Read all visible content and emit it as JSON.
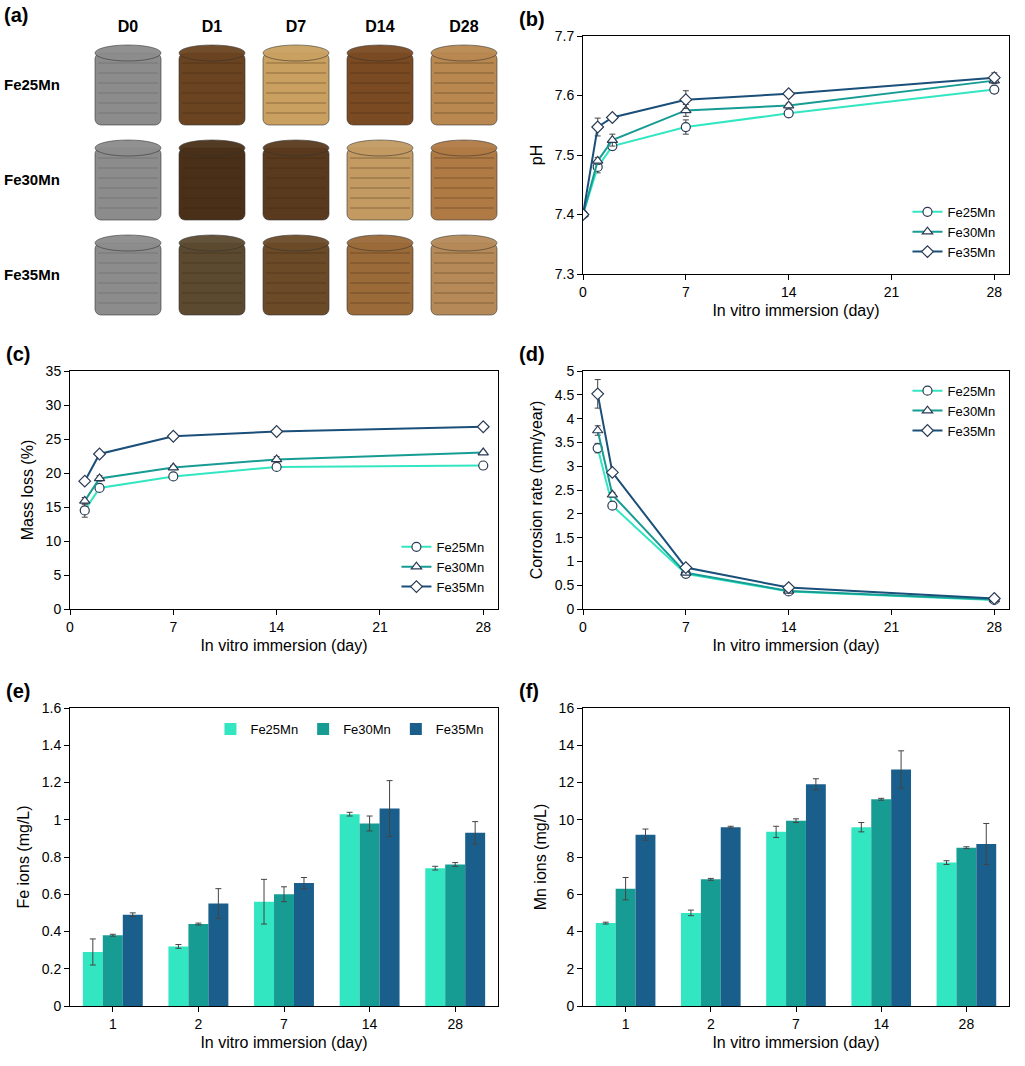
{
  "photo_grid": {
    "label": "(a)",
    "columns": [
      "D0",
      "D1",
      "D7",
      "D14",
      "D28"
    ],
    "rows": [
      "Fe25Mn",
      "Fe30Mn",
      "Fe35Mn"
    ]
  },
  "chart_data": [
    {
      "label": "(b)",
      "type": "line",
      "grid": false,
      "legend": "lower right",
      "x_label": "In vitro immersion (day)",
      "y_label": "pH",
      "x": [
        0,
        1,
        2,
        7,
        14,
        28
      ],
      "xlim": [
        0,
        29
      ],
      "xticks": [
        0,
        7,
        14,
        21,
        28
      ],
      "ylim": [
        7.3,
        7.7
      ],
      "yticks": [
        7.3,
        7.4,
        7.5,
        7.6,
        7.7
      ],
      "series": [
        {
          "name": "Fe25Mn",
          "color": "#33e6c2",
          "marker": "circle",
          "line_style": "solid",
          "values": [
            7.4,
            7.48,
            7.515,
            7.547,
            7.57,
            7.61
          ],
          "errors": [
            0.003,
            0.01,
            0.006,
            0.012,
            0.004,
            0.006
          ]
        },
        {
          "name": "Fe30Mn",
          "color": "#179c94",
          "marker": "triangle-up",
          "line_style": "solid",
          "values": [
            7.4,
            7.49,
            7.525,
            7.575,
            7.583,
            7.625
          ],
          "errors": [
            0.003,
            0.006,
            0.01,
            0.01,
            0.004,
            0.005
          ]
        },
        {
          "name": "Fe35Mn",
          "color": "#1a4f7a",
          "marker": "diamond",
          "line_style": "solid",
          "values": [
            7.4,
            7.547,
            7.563,
            7.593,
            7.603,
            7.63
          ],
          "errors": [
            0.003,
            0.015,
            0.004,
            0.015,
            0.004,
            0.008
          ]
        }
      ]
    },
    {
      "label": "(c)",
      "type": "line",
      "grid": false,
      "legend": "lower right",
      "x_label": "In vitro immersion (day)",
      "y_label": "Mass loss (%)",
      "x": [
        1,
        2,
        7,
        14,
        28
      ],
      "xlim": [
        0,
        29
      ],
      "xticks": [
        0,
        7,
        14,
        21,
        28
      ],
      "ylim": [
        0,
        35
      ],
      "yticks": [
        0,
        5,
        10,
        15,
        20,
        25,
        30,
        35
      ],
      "series": [
        {
          "name": "Fe25Mn",
          "color": "#33e6c2",
          "marker": "circle",
          "line_style": "solid",
          "values": [
            14.5,
            17.8,
            19.5,
            20.9,
            21.1
          ],
          "errors": [
            1.0,
            0.3,
            0.3,
            0.3,
            0.2
          ]
        },
        {
          "name": "Fe30Mn",
          "color": "#179c94",
          "marker": "triangle-up",
          "line_style": "solid",
          "values": [
            15.9,
            19.2,
            20.8,
            22.0,
            23.0
          ],
          "errors": [
            0.5,
            0.4,
            0.3,
            0.4,
            0.2
          ]
        },
        {
          "name": "Fe35Mn",
          "color": "#1a4f7a",
          "marker": "diamond",
          "line_style": "solid",
          "values": [
            18.8,
            22.8,
            25.4,
            26.1,
            26.8
          ],
          "errors": [
            0.3,
            0.3,
            0.2,
            0.2,
            0.2
          ]
        }
      ]
    },
    {
      "label": "(d)",
      "type": "line",
      "grid": false,
      "legend": "upper right",
      "x_label": "In vitro immersion (day)",
      "y_label": "Corrosion rate (mm/year)",
      "x": [
        1,
        2,
        7,
        14,
        28
      ],
      "xlim": [
        0,
        29
      ],
      "xticks": [
        0,
        7,
        14,
        21,
        28
      ],
      "ylim": [
        0,
        5
      ],
      "yticks": [
        0,
        0.5,
        1,
        1.5,
        2,
        2.5,
        3,
        3.5,
        4,
        4.5,
        5
      ],
      "series": [
        {
          "name": "Fe25Mn",
          "color": "#33e6c2",
          "marker": "circle",
          "line_style": "solid",
          "values": [
            3.38,
            2.17,
            0.74,
            0.37,
            0.19
          ],
          "errors": [
            0.1,
            0.05,
            0.02,
            0.01,
            0.01
          ]
        },
        {
          "name": "Fe30Mn",
          "color": "#179c94",
          "marker": "triangle-up",
          "line_style": "solid",
          "values": [
            3.75,
            2.4,
            0.76,
            0.38,
            0.2
          ],
          "errors": [
            0.1,
            0.05,
            0.02,
            0.01,
            0.01
          ]
        },
        {
          "name": "Fe35Mn",
          "color": "#1a4f7a",
          "marker": "diamond",
          "line_style": "solid",
          "values": [
            4.52,
            2.87,
            0.87,
            0.45,
            0.22
          ],
          "errors": [
            0.3,
            0.05,
            0.02,
            0.01,
            0.01
          ]
        }
      ]
    },
    {
      "label": "(e)",
      "type": "bar",
      "grid": false,
      "legend": "upper right",
      "x_label": "In vitro immersion (day)",
      "y_label": "Fe ions (mg/L)",
      "categories": [
        "1",
        "2",
        "7",
        "14",
        "28"
      ],
      "ylim": [
        0,
        1.6
      ],
      "yticks": [
        0,
        0.2,
        0.4,
        0.6,
        0.8,
        1,
        1.2,
        1.4,
        1.6
      ],
      "series": [
        {
          "name": "Fe25Mn",
          "color": "#33e6c2",
          "values": [
            0.29,
            0.32,
            0.56,
            1.03,
            0.74
          ],
          "errors": [
            0.07,
            0.01,
            0.12,
            0.01,
            0.01
          ]
        },
        {
          "name": "Fe30Mn",
          "color": "#179c94",
          "values": [
            0.38,
            0.44,
            0.6,
            0.98,
            0.76
          ],
          "errors": [
            0.005,
            0.005,
            0.04,
            0.04,
            0.01
          ]
        },
        {
          "name": "Fe35Mn",
          "color": "#1a5f8c",
          "values": [
            0.49,
            0.55,
            0.66,
            1.06,
            0.93
          ],
          "errors": [
            0.01,
            0.08,
            0.03,
            0.15,
            0.06
          ]
        }
      ]
    },
    {
      "label": "(f)",
      "type": "bar",
      "grid": false,
      "x_label": "In vitro immersion (day)",
      "y_label": "Mn ions (mg/L)",
      "categories": [
        "1",
        "2",
        "7",
        "14",
        "28"
      ],
      "ylim": [
        0,
        16
      ],
      "yticks": [
        0,
        2,
        4,
        6,
        8,
        10,
        12,
        14,
        16
      ],
      "series": [
        {
          "name": "Fe25Mn",
          "color": "#33e6c2",
          "values": [
            4.45,
            5.0,
            9.35,
            9.6,
            7.7
          ],
          "errors": [
            0.05,
            0.15,
            0.3,
            0.25,
            0.1
          ]
        },
        {
          "name": "Fe30Mn",
          "color": "#179c94",
          "values": [
            6.3,
            6.8,
            9.95,
            11.1,
            8.5
          ],
          "errors": [
            0.6,
            0.05,
            0.1,
            0.05,
            0.05
          ]
        },
        {
          "name": "Fe35Mn",
          "color": "#1a5f8c",
          "values": [
            9.2,
            9.6,
            11.9,
            12.7,
            8.7
          ],
          "errors": [
            0.3,
            0.05,
            0.3,
            1.0,
            1.1
          ]
        }
      ]
    }
  ]
}
